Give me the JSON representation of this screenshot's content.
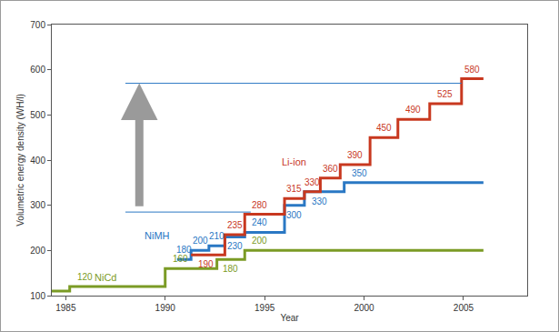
{
  "chart_data": {
    "type": "line",
    "x_label": "Year",
    "y_label": "Volumetric energy density (WH/l)",
    "xlim": [
      1984.3,
      2008.2
    ],
    "xticks": [
      1985,
      1990,
      1995,
      2000,
      2005
    ],
    "ylim": [
      100,
      700
    ],
    "yticks": [
      100,
      200,
      300,
      400,
      500,
      600,
      700
    ],
    "grid": false,
    "data_labels": true,
    "series": [
      {
        "name": "NiCd",
        "color": "#7b9b25",
        "line_style": "step",
        "name_at": [
          1987.0,
          140
        ],
        "x": [
          1984.3,
          1985.2,
          1990.0,
          1992.6,
          1994.0,
          2006.0
        ],
        "values": [
          110,
          120,
          160,
          180,
          200,
          200
        ],
        "value_labels": [
          null,
          "120",
          "160",
          "180",
          "200",
          null
        ]
      },
      {
        "name": "NiMH",
        "color": "#2a78c4",
        "line_style": "step",
        "name_at": [
          1989.6,
          232
        ],
        "x": [
          1990.6,
          1991.3,
          1992.2,
          1993.0,
          1994.0,
          1996.0,
          1997.0,
          1999.0,
          2006.0
        ],
        "values": [
          180,
          200,
          210,
          230,
          240,
          300,
          330,
          350,
          350
        ],
        "value_labels": [
          "180",
          "200",
          "210",
          "230",
          "240",
          "300",
          "330",
          "350",
          null
        ]
      },
      {
        "name": "Li-ion",
        "color": "#c8381f",
        "line_style": "step",
        "name_at": [
          1996.5,
          395
        ],
        "x": [
          1991.3,
          1993.0,
          1994.0,
          1996.0,
          1997.0,
          1997.8,
          1998.8,
          2000.3,
          2001.7,
          2003.3,
          2004.9,
          2006.0
        ],
        "values": [
          190,
          235,
          280,
          315,
          330,
          360,
          390,
          450,
          490,
          525,
          580,
          580
        ],
        "value_labels": [
          "190",
          "235",
          "280",
          "315",
          "330",
          "360",
          "390",
          "450",
          "490",
          "525",
          "580",
          null
        ]
      }
    ],
    "reference_lines": [
      {
        "y": 570,
        "x": [
          1988.0,
          2004.9
        ],
        "color": "#2a78c4"
      },
      {
        "y": 285,
        "x": [
          1988.0,
          1994.3
        ],
        "color": "#2a78c4"
      }
    ],
    "arrow": {
      "x": 1988.7,
      "from": 295,
      "to": 570,
      "color": "#9a9a9a"
    }
  }
}
